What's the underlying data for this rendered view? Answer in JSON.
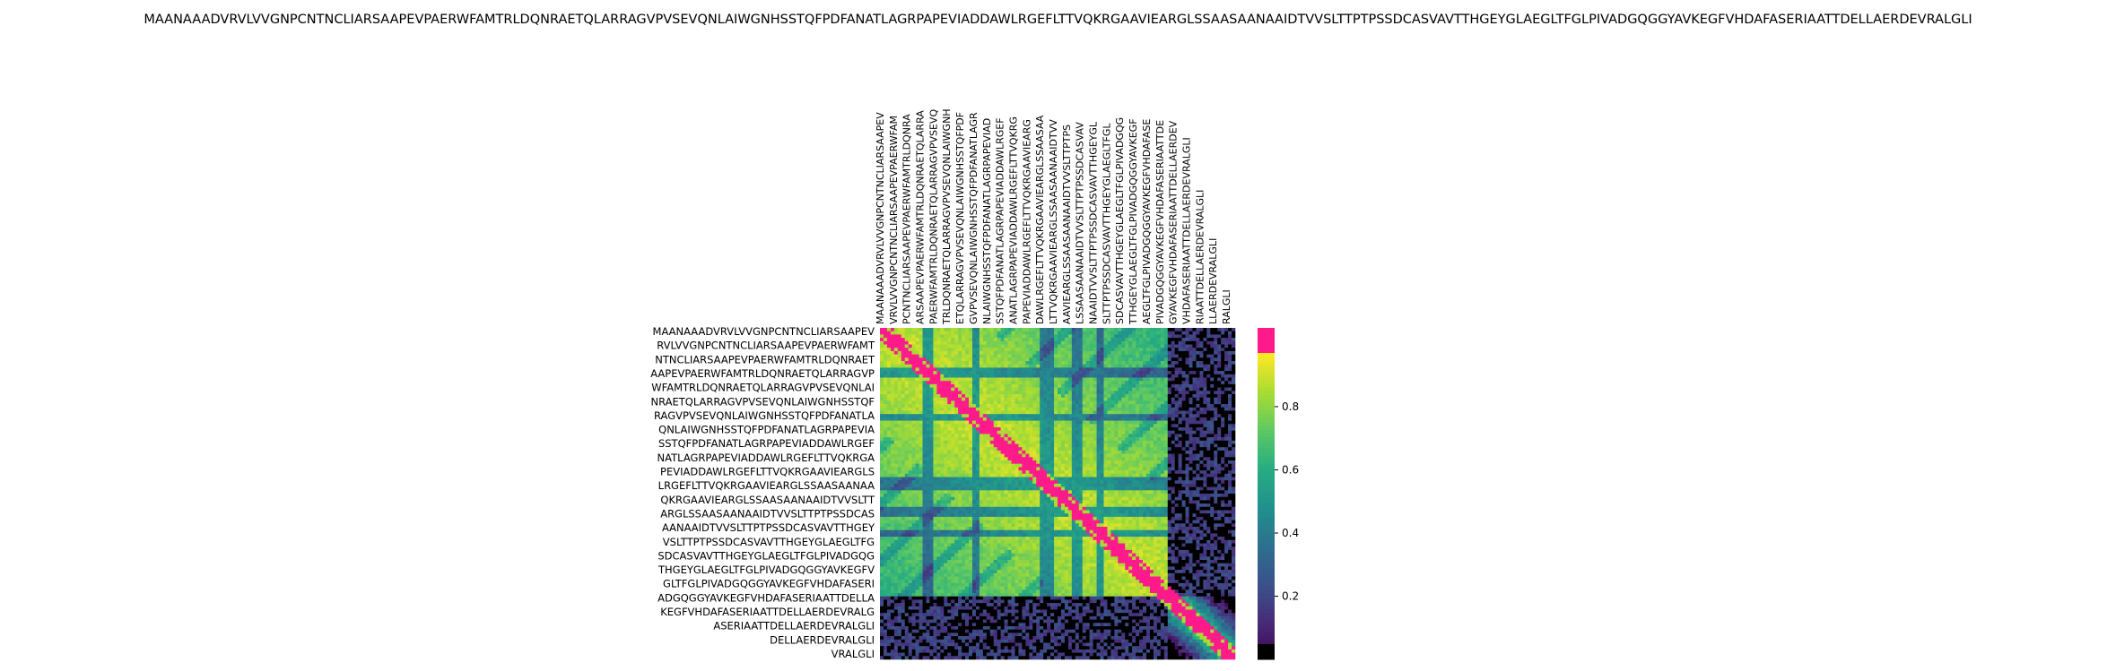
{
  "chart_data": {
    "type": "heatmap",
    "title": "MAANAAADVRVLVVGNPCNTNCLIARSAAPEVPAERWFAMTRLDQNRAETQLARRAGVPVSEVQNLAIWGNHSSTQFPDFANATLAGRPAPEVIADDAWLRGEFLTTVQKRGAAVIEARGLSSAASAANAAIDTVVSLTTPTPSSDCASVAVTTHGEYGLAEGLTFGLPIVADGQGGYAVKEGFVHDAFASERIAATTDELLAERDEVRALGLI",
    "xlabel": "",
    "ylabel": "",
    "x_tick_labels": [
      "MAANAAADVRVLVVGNPCNTNCLIARSAAPEV",
      "VRVLVVGNPCNTNCLIARSAAPEVPAERWFAM",
      "PCNTNCLIARSAAPEVPAERWFAMTRLDQNRA",
      "ARSAAPEVPAERWFAMTRLDQNRAETQLARRA",
      "PAERWFAMTRLDQNRAETQLARRAGVPVSEVQ",
      "TRLDQNRAETQLARRAGVPVSEVQNLAIWGNH",
      "ETQLARRAGVPVSEVQNLAIWGNHSSTQFPDF",
      "GVPVSEVQNLAIWGNHSSTQFPDFANATLAGR",
      "NLAIWGNHSSTQFPDFANATLAGRPAPEVIAD",
      "SSTQFPDFANATLAGRPAPEVIADDAWLRGEF",
      "ANATLAGRPAPEVIADDAWLRGEFLTTVQKRG",
      "PAPEVIADDAWLRGEFLTTVQKRGAAVIEARG",
      "DAWLRGEFLTTVQKRGAAVIEARGLSSAASAA",
      "LTTVQKRGAAVIEARGLSSAASAANAAIDTVV",
      "AAVIEARGLSSAASAANAAIDTVVSLTTPTPS",
      "LSSAASAANAAIDTVVSLTTPTPSSDCASVAV",
      "NAAIDTVVSLTTPTPSSDCASVAVTTHGEYGL",
      "SLTTPTPSSDCASVAVTTHGEYGLAEGLTFGL",
      "SDCASVAVTTHGEYGLAEGLTFGLPIVADGQG",
      "TTHGEYGLAEGLTFGLPIVADGQGGYAVKEGF",
      "AEGLTFGLPIVADGQGGYAVKEGFVHDAFASE",
      "PIVADGQGGYAVKEGFVHDAFASERIAATTDE",
      "GYAVKEGFVHDAFASERIAATTDELLAERDEV",
      "VHDAFASERIAATTDELLAERDEVRALGLI",
      "RIAATTDELLAERDEVRALGLI",
      "LLAERDEVRALGLI",
      "RALGLI"
    ],
    "y_tick_labels": [
      "MAANAAADVRVLVVGNPCNTNCLIARSAAPEV",
      "RVLVVGNPCNTNCLIARSAAPEVPAERWFAMT",
      "NTNCLIARSAAPEVPAERWFAMTRLDQNRAET",
      "AAPEVPAERWFAMTRLDQNRAETQLARRAGVP",
      "WFAMTRLDQNRAETQLARRAGVPVSEVQNLAI",
      "NRAETQLARRAGVPVSEVQNLAIWGNHSSTQF",
      "RAGVPVSEVQNLAIWGNHSSTQFPDFANATLA",
      "QNLAIWGNHSSTQFPDFANATLAGRPAPEVIA",
      "SSTQFPDFANATLAGRPAPEVIADDAWLRGEF",
      "NATLAGRPAPEVIADDAWLRGEFLTTVQKRGA",
      "PEVIADDAWLRGEFLTTVQKRGAAVIEARGLS",
      "LRGEFLTTVQKRGAAVIEARGLSSAASAANAA",
      "QKRGAAVIEARGLSSAASAANAAIDTVVSLTT",
      "ARGLSSAASAANAAIDTVVSLTTPTPSSDCAS",
      "AANAAIDTVVSLTTPTPSSDCASVAVTTHGEY",
      "VSLTTPTPSSDCASVAVTTHGEYGLAEGLTFG",
      "SDCASVAVTTHGEYGLAEGLTFGLPIVADGQG",
      "THGEYGLAEGLTFGLPIVADGQGGYAVKEGFV",
      "GLTFGLPIVADGQGGYAVKEGFVHDAFASERI",
      "ADGQGGYAVKEGFVHDAFASERIAATTDELLA",
      "KEGFVHDAFASERIAATTDELLAERDEVRALG",
      "ASERIAATTDELLAERDEVRALGLI",
      "DELLAERDEVRALGLI",
      "VRALGLI"
    ],
    "colorbar": {
      "ticks": [
        0.2,
        0.4,
        0.6,
        0.8
      ],
      "tick_labels": [
        "0.2",
        "0.4",
        "0.6",
        "0.8"
      ],
      "range": [
        0.0,
        0.97
      ],
      "colormap": "viridis",
      "over_color": "#ff1a8c"
    },
    "matrix_size": 200,
    "sequence_length": 200,
    "description_of_values": "pairwise similarity between sequence windows; diagonal band saturated (pink) above colormap max",
    "colors": {
      "diagonal": "#ff1a8c",
      "low": "#000000",
      "high": "#c8e020"
    }
  }
}
